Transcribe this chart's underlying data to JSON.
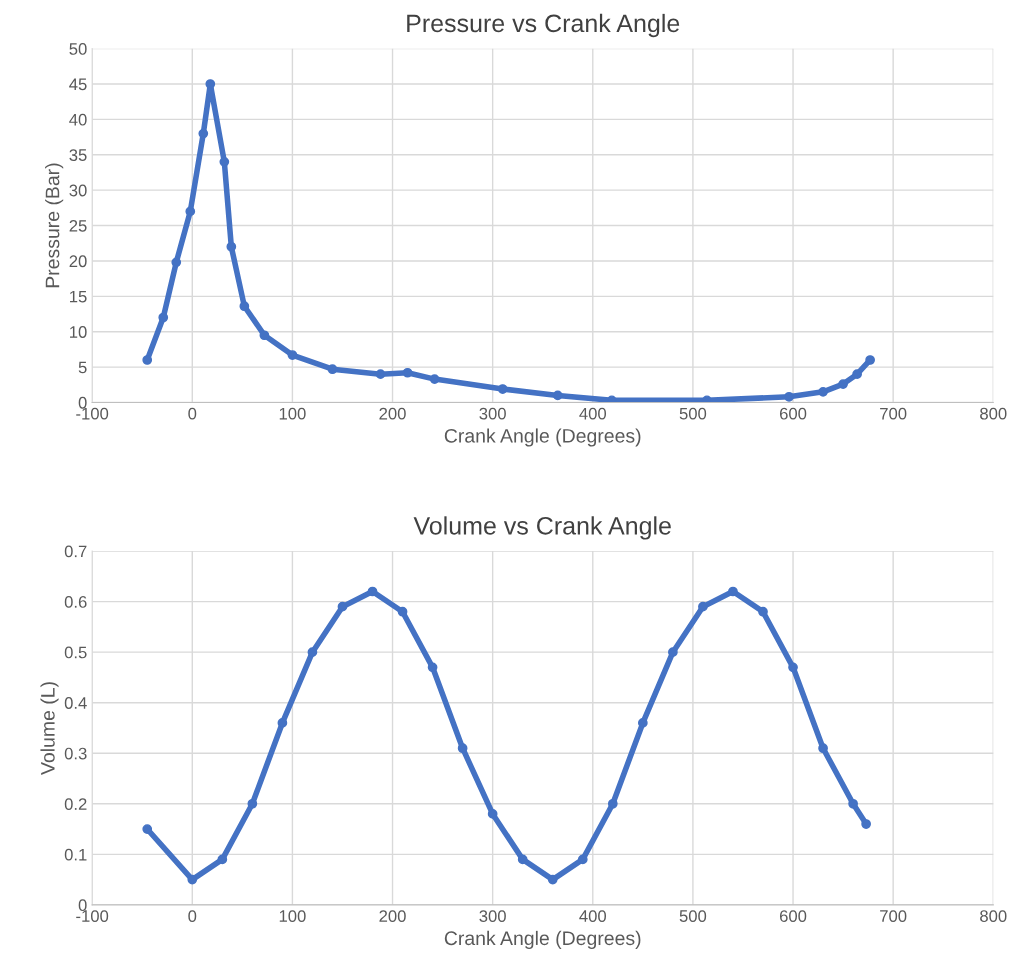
{
  "chart_data": [
    {
      "type": "line",
      "title": "Pressure vs Crank Angle",
      "xlabel": "Crank Angle (Degrees)",
      "ylabel": "Pressure (Bar)",
      "marker": "circle",
      "grid": true,
      "xlim": [
        -100,
        800
      ],
      "xticks": [
        -100,
        0,
        100,
        200,
        300,
        400,
        500,
        600,
        700,
        800
      ],
      "ylim": [
        0,
        50
      ],
      "yticks": [
        0,
        5,
        10,
        15,
        20,
        25,
        30,
        35,
        40,
        45,
        50
      ],
      "series": [
        {
          "color": "#4472c4",
          "x": [
            -45,
            -29,
            -16,
            -2,
            11,
            18,
            32,
            39,
            52,
            72,
            100,
            140,
            188,
            215,
            242,
            310,
            365,
            419,
            514,
            596,
            630,
            650,
            664,
            677
          ],
          "values": [
            6,
            12,
            19.8,
            27,
            38,
            45,
            34,
            22,
            13.6,
            9.5,
            6.7,
            4.7,
            4,
            4.2,
            3.3,
            1.9,
            1,
            0.3,
            0.3,
            0.8,
            1.5,
            2.6,
            4,
            6
          ]
        }
      ]
    },
    {
      "type": "line",
      "title": "Volume vs Crank Angle",
      "xlabel": "Crank Angle (Degrees)",
      "ylabel": "Volume (L)",
      "marker": "circle",
      "grid": true,
      "xlim": [
        -100,
        800
      ],
      "xticks": [
        -100,
        0,
        100,
        200,
        300,
        400,
        500,
        600,
        700,
        800
      ],
      "ylim": [
        0,
        0.7
      ],
      "yticks": [
        0,
        0.1,
        0.2,
        0.3,
        0.4,
        0.5,
        0.6,
        0.7
      ],
      "series": [
        {
          "color": "#4472c4",
          "x": [
            -45,
            0,
            30,
            60,
            90,
            120,
            150,
            180,
            210,
            240,
            270,
            300,
            330,
            360,
            390,
            420,
            450,
            480,
            510,
            540,
            570,
            600,
            630,
            660,
            673
          ],
          "values": [
            0.15,
            0.05,
            0.09,
            0.2,
            0.36,
            0.5,
            0.59,
            0.62,
            0.58,
            0.47,
            0.31,
            0.18,
            0.09,
            0.05,
            0.09,
            0.2,
            0.36,
            0.5,
            0.59,
            0.62,
            0.58,
            0.47,
            0.31,
            0.2,
            0.16
          ]
        }
      ]
    }
  ]
}
